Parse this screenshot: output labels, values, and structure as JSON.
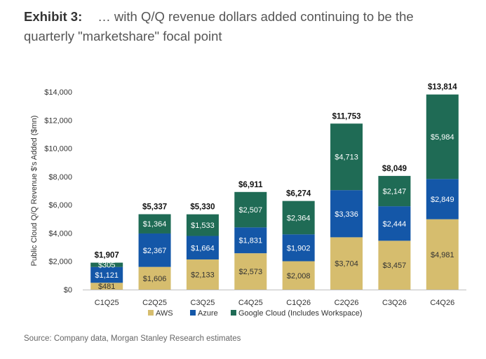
{
  "exhibit_label": "Exhibit 3:",
  "title": "… with Q/Q revenue dollars added continuing to be the quarterly \"marketshare\" focal point",
  "source": "Source: Company data, Morgan Stanley Research estimates",
  "colors": {
    "AWS": "#d6bd6e",
    "Azure": "#1457a8",
    "Google Cloud (Includes Workspace)": "#1f6b55"
  },
  "chart_data": {
    "type": "bar",
    "stacked": true,
    "title": "",
    "xlabel": "",
    "ylabel": "Public Cloud Q/Q Revenue $'s Added ($mn)",
    "ylim": [
      0,
      14000
    ],
    "yticks": [
      0,
      2000,
      4000,
      6000,
      8000,
      10000,
      12000,
      14000
    ],
    "ytick_labels": [
      "$0",
      "$2,000",
      "$4,000",
      "$6,000",
      "$8,000",
      "$10,000",
      "$12,000",
      "$14,000"
    ],
    "grid": false,
    "legend_position": "bottom",
    "categories": [
      "C1Q25",
      "C2Q25",
      "C3Q25",
      "C4Q25",
      "C1Q26",
      "C2Q26",
      "C3Q26",
      "C4Q26"
    ],
    "series": [
      {
        "name": "AWS",
        "values": [
          481,
          1606,
          2133,
          2573,
          2008,
          3704,
          3457,
          4981
        ],
        "labels": [
          "$481",
          "$1,606",
          "$2,133",
          "$2,573",
          "$2,008",
          "$3,704",
          "$3,457",
          "$4,981"
        ]
      },
      {
        "name": "Azure",
        "values": [
          1121,
          2367,
          1664,
          1831,
          1902,
          3336,
          2444,
          2849
        ],
        "labels": [
          "$1,121",
          "$2,367",
          "$1,664",
          "$1,831",
          "$1,902",
          "$3,336",
          "$2,444",
          "$2,849"
        ]
      },
      {
        "name": "Google Cloud (Includes Workspace)",
        "values": [
          305,
          1364,
          1533,
          2507,
          2364,
          4713,
          2147,
          5984
        ],
        "labels": [
          "$305",
          "$1,364",
          "$1,533",
          "$2,507",
          "$2,364",
          "$4,713",
          "$2,147",
          "$5,984"
        ]
      }
    ],
    "totals": [
      1907,
      5337,
      5330,
      6911,
      6274,
      11753,
      8049,
      13814
    ],
    "total_labels": [
      "$1,907",
      "$5,337",
      "$5,330",
      "$6,911",
      "$6,274",
      "$11,753",
      "$8,049",
      "$13,814"
    ]
  }
}
